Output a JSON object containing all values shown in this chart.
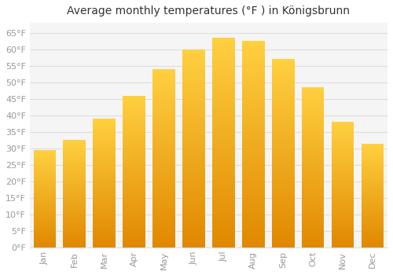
{
  "title": "Average monthly temperatures (°F ) in Königsbrunn",
  "months": [
    "Jan",
    "Feb",
    "Mar",
    "Apr",
    "May",
    "Jun",
    "Jul",
    "Aug",
    "Sep",
    "Oct",
    "Nov",
    "Dec"
  ],
  "values": [
    29.5,
    32.5,
    39.0,
    46.0,
    54.0,
    60.0,
    63.5,
    62.5,
    57.0,
    48.5,
    38.0,
    31.5
  ],
  "bar_color_bottom": "#E08800",
  "bar_color_top": "#FFD040",
  "background_color": "#FFFFFF",
  "plot_bg_color": "#F5F5F5",
  "grid_color": "#DDDDDD",
  "text_color": "#999999",
  "title_color": "#333333",
  "ylim": [
    0,
    68
  ],
  "yticks": [
    0,
    5,
    10,
    15,
    20,
    25,
    30,
    35,
    40,
    45,
    50,
    55,
    60,
    65
  ],
  "ytick_labels": [
    "0°F",
    "5°F",
    "10°F",
    "15°F",
    "20°F",
    "25°F",
    "30°F",
    "35°F",
    "40°F",
    "45°F",
    "50°F",
    "55°F",
    "60°F",
    "65°F"
  ],
  "title_fontsize": 10,
  "tick_fontsize": 8,
  "bar_width": 0.75
}
